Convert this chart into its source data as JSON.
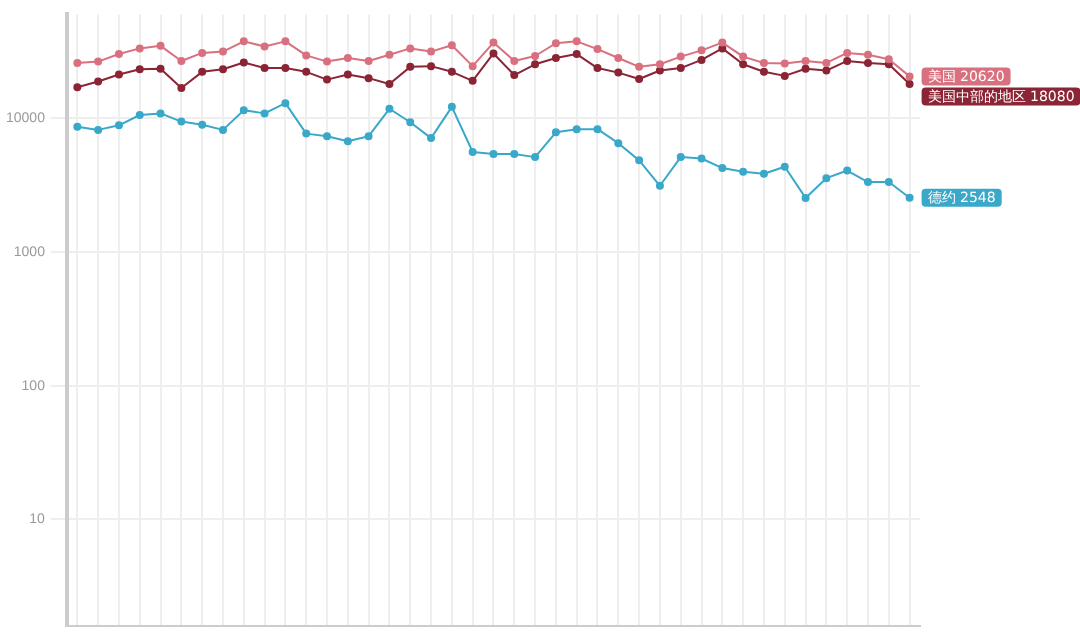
{
  "chart_data": {
    "type": "line",
    "categories": [
      null,
      null,
      null,
      null,
      null,
      null,
      null,
      null,
      null,
      null,
      null,
      null,
      null,
      null,
      null,
      null,
      null,
      null,
      null,
      null,
      null,
      null,
      null,
      null,
      null,
      null,
      null,
      null,
      null,
      null,
      null,
      null,
      null,
      null,
      null,
      null,
      null,
      null,
      null,
      null,
      null
    ],
    "series": [
      {
        "name": "美国",
        "color": "#d9707f",
        "values": [
          26000,
          26600,
          30300,
          33400,
          34900,
          26900,
          30900,
          31600,
          37700,
          34500,
          37700,
          29600,
          26600,
          28300,
          26900,
          29900,
          33400,
          31600,
          35300,
          24600,
          36900,
          26900,
          29300,
          36500,
          37700,
          33000,
          28300,
          24300,
          25400,
          29000,
          32300,
          36900,
          29000,
          26000,
          25700,
          26900,
          26000,
          30900,
          29900,
          27700,
          20620
        ],
        "value_labels": [
          null,
          null,
          null,
          null,
          null,
          null,
          null,
          null,
          null,
          null,
          null,
          null,
          null,
          null,
          null,
          null,
          null,
          null,
          null,
          null,
          null,
          null,
          null,
          null,
          null,
          null,
          null,
          null,
          null,
          null,
          null,
          null,
          null,
          null,
          null,
          null,
          null,
          null,
          null,
          null,
          "20620"
        ]
      },
      {
        "name": "美国中部的地区",
        "color": "#8b2434",
        "values": [
          17100,
          18900,
          21300,
          23300,
          23500,
          16900,
          22300,
          23300,
          26200,
          23800,
          23800,
          22300,
          19500,
          21300,
          20000,
          18100,
          24300,
          24600,
          22300,
          19100,
          30600,
          21100,
          25400,
          28300,
          30300,
          23800,
          22000,
          19700,
          22800,
          23800,
          27400,
          33400,
          25400,
          22300,
          20800,
          23500,
          22800,
          26900,
          26000,
          25400,
          18080
        ],
        "value_labels": [
          null,
          null,
          null,
          null,
          null,
          null,
          null,
          null,
          null,
          null,
          null,
          null,
          null,
          null,
          null,
          null,
          null,
          null,
          null,
          null,
          null,
          null,
          null,
          null,
          null,
          null,
          null,
          null,
          null,
          null,
          null,
          null,
          null,
          null,
          null,
          null,
          null,
          null,
          null,
          null,
          "18080"
        ]
      },
      {
        "name": "德约",
        "color": "#3aa8c8",
        "values": [
          8670,
          8200,
          8870,
          10600,
          10900,
          9460,
          8960,
          8200,
          11500,
          10900,
          13000,
          7690,
          7360,
          6740,
          7360,
          11800,
          9360,
          7120,
          12200,
          5600,
          5410,
          5410,
          5130,
          7860,
          8300,
          8300,
          6520,
          4850,
          3130,
          5130,
          5010,
          4250,
          3980,
          3850,
          4350,
          2540,
          3570,
          4070,
          3340,
          3340,
          2548
        ],
        "value_labels": [
          null,
          null,
          null,
          null,
          null,
          null,
          null,
          null,
          null,
          null,
          null,
          null,
          null,
          null,
          null,
          null,
          null,
          null,
          null,
          null,
          null,
          null,
          null,
          null,
          null,
          null,
          null,
          null,
          null,
          null,
          null,
          null,
          null,
          null,
          null,
          null,
          null,
          null,
          null,
          null,
          "2548"
        ]
      }
    ],
    "log": true,
    "ylim": [
      1.6,
      60000
    ],
    "yticks": [
      10,
      100,
      1000,
      10000
    ],
    "grid": true,
    "legend": false,
    "tick_labels": "y",
    "marker": "circle",
    "line_style": "solid"
  }
}
